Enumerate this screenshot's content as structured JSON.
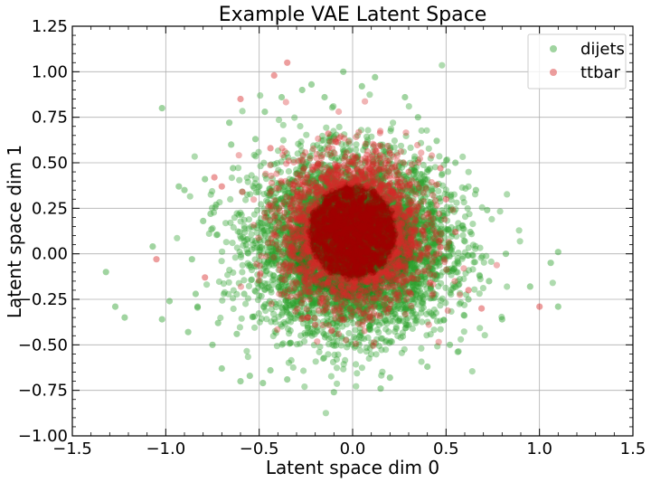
{
  "chart_data": {
    "type": "scatter",
    "title": "Example VAE Latent Space",
    "xlabel": "Latent space dim 0",
    "ylabel": "Latent space dim 1",
    "xlim": [
      -1.5,
      1.5
    ],
    "ylim": [
      -1.0,
      1.25
    ],
    "xticks": [
      -1.5,
      -1.0,
      -0.5,
      0.0,
      0.5,
      1.0,
      1.5
    ],
    "xtick_labels": [
      "−1.5",
      "−1.0",
      "−0.5",
      "0.0",
      "0.5",
      "1.0",
      "1.5"
    ],
    "yticks": [
      -1.0,
      -0.75,
      -0.5,
      -0.25,
      0.0,
      0.25,
      0.5,
      0.75,
      1.0,
      1.25
    ],
    "ytick_labels": [
      "−1.00",
      "−0.75",
      "−0.50",
      "−0.25",
      "0.00",
      "0.25",
      "0.50",
      "0.75",
      "1.00",
      "1.25"
    ],
    "grid": true,
    "legend_position": "top-right",
    "series": [
      {
        "name": "dijets",
        "color": "#2ca02c",
        "core_color": "#1a8c1a",
        "opacity": 0.38,
        "center": [
          0.0,
          0.05
        ],
        "spread": [
          0.25,
          0.23
        ],
        "approx_count": 6000,
        "points": [
          [
            -1.32,
            -0.1
          ],
          [
            -1.27,
            -0.29
          ],
          [
            -1.22,
            -0.35
          ],
          [
            -1.07,
            0.04
          ],
          [
            -1.02,
            0.8
          ],
          [
            -1.02,
            -0.36
          ],
          [
            -0.98,
            -0.26
          ],
          [
            -0.93,
            0.37
          ],
          [
            -0.9,
            0.35
          ],
          [
            -0.88,
            -0.43
          ],
          [
            -0.86,
            -0.03
          ],
          [
            -0.84,
            -0.22
          ],
          [
            -0.83,
            -0.29
          ],
          [
            -0.8,
            0.18
          ],
          [
            -0.79,
            0.41
          ],
          [
            -0.76,
            0.22
          ],
          [
            -0.75,
            -0.5
          ],
          [
            -0.73,
            0.27
          ],
          [
            -0.72,
            -0.38
          ],
          [
            -0.7,
            -0.63
          ],
          [
            -0.66,
            0.72
          ],
          [
            -0.65,
            0.6
          ],
          [
            -0.64,
            0.47
          ],
          [
            -0.62,
            -0.44
          ],
          [
            -0.6,
            -0.7
          ],
          [
            -0.55,
            -0.67
          ],
          [
            -0.52,
            0.63
          ],
          [
            -0.48,
            -0.71
          ],
          [
            -0.47,
            0.78
          ],
          [
            -0.44,
            -0.64
          ],
          [
            -0.38,
            0.86
          ],
          [
            -0.35,
            -0.69
          ],
          [
            -0.27,
            0.9
          ],
          [
            -0.22,
            0.93
          ],
          [
            -0.15,
            0.86
          ],
          [
            -0.1,
            -0.76
          ],
          [
            -0.05,
            1.0
          ],
          [
            0.05,
            0.92
          ],
          [
            0.12,
            0.97
          ],
          [
            0.15,
            -0.74
          ],
          [
            0.2,
            -0.68
          ],
          [
            0.28,
            0.86
          ],
          [
            0.35,
            0.75
          ],
          [
            0.4,
            -0.62
          ],
          [
            0.45,
            0.62
          ],
          [
            0.52,
            -0.5
          ],
          [
            0.55,
            0.5
          ],
          [
            0.62,
            -0.25
          ],
          [
            0.66,
            0.35
          ],
          [
            0.72,
            0.24
          ],
          [
            0.73,
            -0.15
          ],
          [
            0.8,
            -0.36
          ],
          [
            0.82,
            0.0
          ],
          [
            0.95,
            -0.18
          ],
          [
            1.06,
            -0.05
          ],
          [
            1.1,
            0.01
          ],
          [
            1.1,
            -0.29
          ],
          [
            -0.57,
            0.05
          ],
          [
            0.63,
            0.12
          ],
          [
            -0.58,
            -0.22
          ]
        ]
      },
      {
        "name": "ttbar",
        "color": "#d62728",
        "core_color": "#a10000",
        "opacity": 0.35,
        "center": [
          0.0,
          0.12
        ],
        "spread": [
          0.18,
          0.2
        ],
        "approx_count": 3000,
        "points": [
          [
            -1.05,
            -0.03
          ],
          [
            -0.79,
            -0.13
          ],
          [
            -0.74,
            0.42
          ],
          [
            -0.7,
            0.37
          ],
          [
            -0.59,
            0.34
          ],
          [
            -0.47,
            0.2
          ],
          [
            -0.44,
            0.58
          ],
          [
            -0.42,
            0.98
          ],
          [
            -0.35,
            1.05
          ],
          [
            -0.26,
            0.47
          ],
          [
            -0.23,
            -0.21
          ],
          [
            -0.13,
            0.66
          ],
          [
            0.2,
            0.55
          ],
          [
            0.3,
            0.45
          ],
          [
            0.45,
            0.38
          ],
          [
            0.47,
            0.47
          ],
          [
            0.5,
            0.3
          ],
          [
            0.55,
            0.12
          ],
          [
            0.62,
            -0.2
          ],
          [
            0.69,
            -0.3
          ],
          [
            1.0,
            -0.29
          ],
          [
            -0.6,
            0.85
          ],
          [
            0.35,
            -0.1
          ],
          [
            -0.2,
            -0.39
          ]
        ]
      }
    ]
  }
}
